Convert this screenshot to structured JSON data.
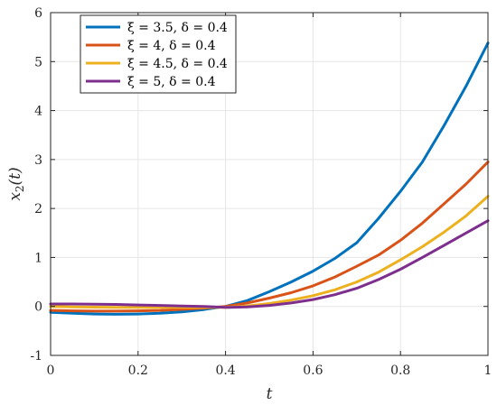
{
  "chart_data": {
    "type": "line",
    "title": "",
    "xlabel": "t",
    "ylabel": "x_2(t)",
    "xlim": [
      0,
      1
    ],
    "ylim": [
      -1,
      6
    ],
    "x_ticks": [
      0,
      0.2,
      0.4,
      0.6,
      0.8,
      1
    ],
    "x_tick_labels": [
      "0",
      "0.2",
      "0.4",
      "0.6",
      "0.8",
      "1"
    ],
    "y_ticks": [
      -1,
      0,
      1,
      2,
      3,
      4,
      5,
      6
    ],
    "y_tick_labels": [
      "-1",
      "0",
      "1",
      "2",
      "3",
      "4",
      "5",
      "6"
    ],
    "grid": true,
    "legend_position": "top-left",
    "x": [
      0,
      0.05,
      0.1,
      0.15,
      0.2,
      0.25,
      0.3,
      0.35,
      0.4,
      0.45,
      0.5,
      0.55,
      0.6,
      0.65,
      0.7,
      0.75,
      0.8,
      0.85,
      0.9,
      0.95,
      1
    ],
    "series": [
      {
        "name": "ξ = 3.5,  δ = 0.4",
        "color": "#0072BD",
        "values": [
          -0.12,
          -0.14,
          -0.155,
          -0.16,
          -0.155,
          -0.14,
          -0.11,
          -0.065,
          0.0,
          0.12,
          0.3,
          0.5,
          0.72,
          0.98,
          1.3,
          1.8,
          2.35,
          2.95,
          3.7,
          4.5,
          5.38
        ]
      },
      {
        "name": "ξ = 4,  δ = 0.4",
        "color": "#D95319",
        "values": [
          -0.08,
          -0.09,
          -0.095,
          -0.095,
          -0.09,
          -0.08,
          -0.06,
          -0.035,
          0.0,
          0.07,
          0.17,
          0.28,
          0.42,
          0.6,
          0.82,
          1.05,
          1.35,
          1.7,
          2.1,
          2.5,
          2.95
        ]
      },
      {
        "name": "ξ = 4.5,  δ = 0.4",
        "color": "#EDB120",
        "values": [
          0.0,
          -0.01,
          -0.015,
          -0.02,
          -0.02,
          -0.02,
          -0.02,
          -0.02,
          -0.02,
          0.01,
          0.06,
          0.13,
          0.22,
          0.34,
          0.5,
          0.7,
          0.95,
          1.22,
          1.52,
          1.85,
          2.25
        ]
      },
      {
        "name": "ξ = 5,  δ = 0.4",
        "color": "#7E2F8E",
        "values": [
          0.05,
          0.05,
          0.045,
          0.04,
          0.03,
          0.02,
          0.01,
          0.0,
          -0.02,
          -0.01,
          0.02,
          0.07,
          0.14,
          0.24,
          0.37,
          0.55,
          0.76,
          1.0,
          1.25,
          1.5,
          1.75
        ]
      }
    ]
  }
}
